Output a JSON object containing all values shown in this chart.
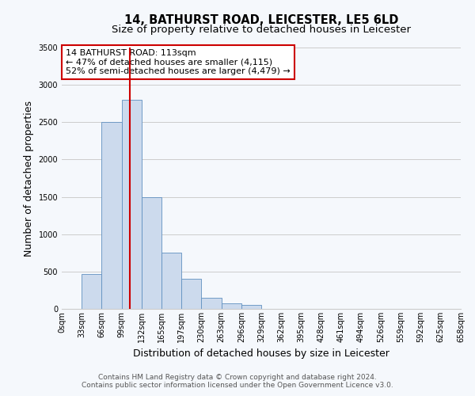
{
  "title": "14, BATHURST ROAD, LEICESTER, LE5 6LD",
  "subtitle": "Size of property relative to detached houses in Leicester",
  "xlabel": "Distribution of detached houses by size in Leicester",
  "ylabel": "Number of detached properties",
  "bar_values": [
    0,
    470,
    2500,
    2800,
    1500,
    750,
    400,
    150,
    75,
    50,
    0,
    0,
    0,
    0,
    0,
    0,
    0,
    0,
    0,
    0
  ],
  "bin_labels": [
    "0sqm",
    "33sqm",
    "66sqm",
    "99sqm",
    "132sqm",
    "165sqm",
    "197sqm",
    "230sqm",
    "263sqm",
    "296sqm",
    "329sqm",
    "362sqm",
    "395sqm",
    "428sqm",
    "461sqm",
    "494sqm",
    "526sqm",
    "559sqm",
    "592sqm",
    "625sqm",
    "658sqm"
  ],
  "bar_color": "#ccdaed",
  "bar_edge_color": "#6090c0",
  "vline_color": "#cc0000",
  "annotation_box_text": "14 BATHURST ROAD: 113sqm\n← 47% of detached houses are smaller (4,115)\n52% of semi-detached houses are larger (4,479) →",
  "annotation_box_facecolor": "white",
  "annotation_box_edgecolor": "#cc0000",
  "ylim": [
    0,
    3500
  ],
  "yticks": [
    0,
    500,
    1000,
    1500,
    2000,
    2500,
    3000,
    3500
  ],
  "grid_color": "#cccccc",
  "footer_line1": "Contains HM Land Registry data © Crown copyright and database right 2024.",
  "footer_line2": "Contains public sector information licensed under the Open Government Licence v3.0.",
  "bg_color": "#f5f8fc",
  "title_fontsize": 10.5,
  "subtitle_fontsize": 9.5,
  "axis_label_fontsize": 9,
  "tick_fontsize": 7,
  "annotation_fontsize": 8,
  "footer_fontsize": 6.5
}
